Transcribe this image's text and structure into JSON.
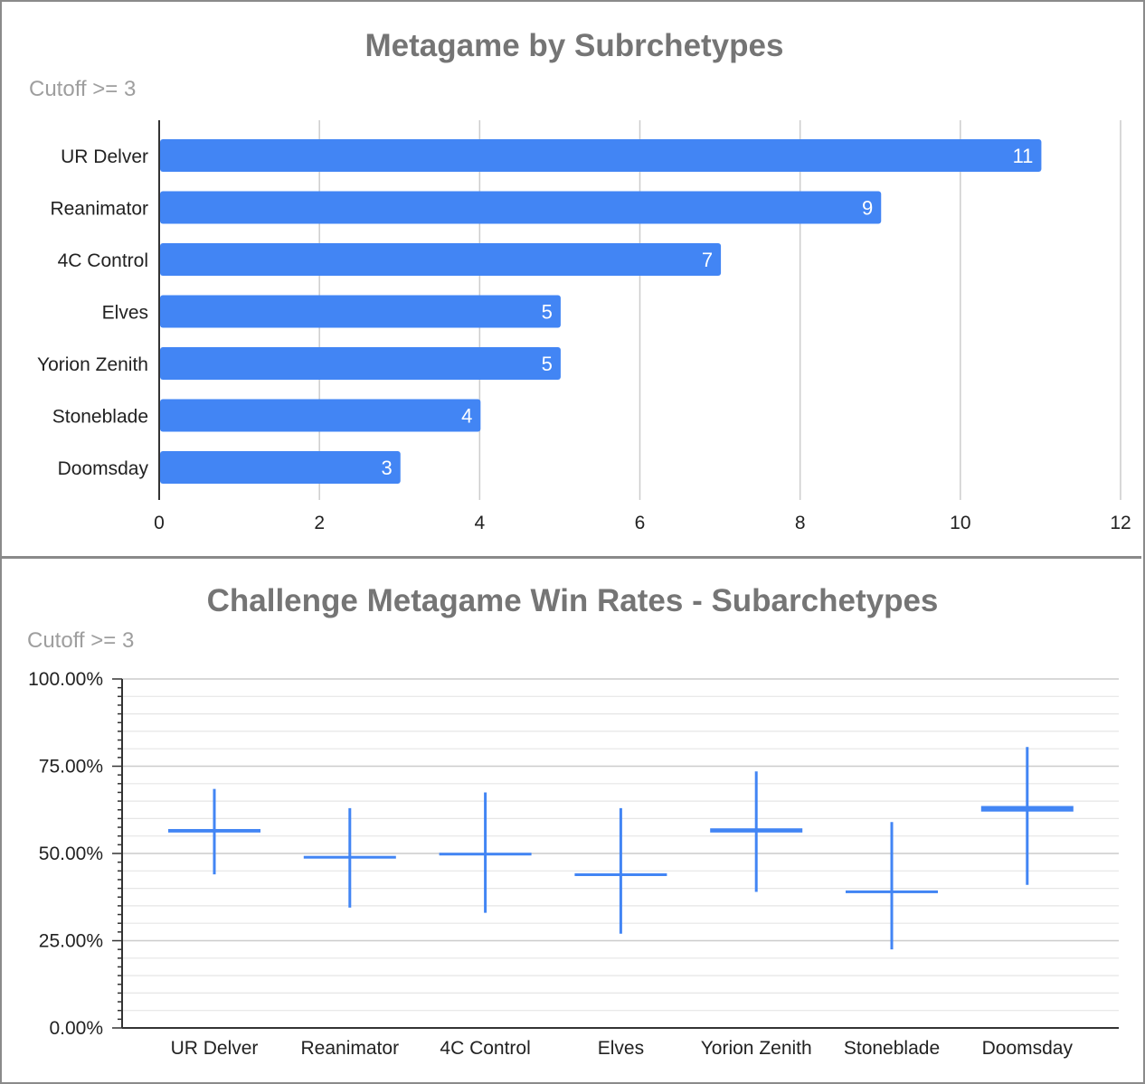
{
  "chart_data": [
    {
      "type": "bar",
      "orientation": "horizontal",
      "title": "Metagame by Subrchetypes",
      "subtitle": "Cutoff >= 3",
      "categories": [
        "UR Delver",
        "Reanimator",
        "4C Control",
        "Elves",
        "Yorion Zenith",
        "Stoneblade",
        "Doomsday"
      ],
      "values": [
        11,
        9,
        7,
        5,
        5,
        4,
        3
      ],
      "xlim": [
        0,
        12
      ],
      "xticks": [
        "0",
        "2",
        "4",
        "6",
        "8",
        "10",
        "12"
      ],
      "grid": true,
      "data_labels": true,
      "bar_color": "#4285f4"
    },
    {
      "type": "candlestick",
      "title": "Challenge Metagame Win Rates - Subarchetypes",
      "subtitle": "Cutoff >= 3",
      "categories": [
        "UR Delver",
        "Reanimator",
        "4C Control",
        "Elves",
        "Yorion Zenith",
        "Stoneblade",
        "Doomsday"
      ],
      "low": [
        44,
        34.5,
        33,
        27,
        39,
        22.5,
        41
      ],
      "high": [
        68.5,
        63,
        67.5,
        63,
        73.5,
        59,
        80.5
      ],
      "open": [
        56,
        48.8,
        49.8,
        43.7,
        56,
        39,
        62
      ],
      "close": [
        57,
        49.3,
        50.2,
        44.3,
        57.2,
        39.4,
        63.6
      ],
      "ylim": [
        0,
        100
      ],
      "yticks": [
        "0.00%",
        "25.00%",
        "50.00%",
        "75.00%",
        "100.00%"
      ],
      "grid": true,
      "color": "#4285f4"
    }
  ]
}
